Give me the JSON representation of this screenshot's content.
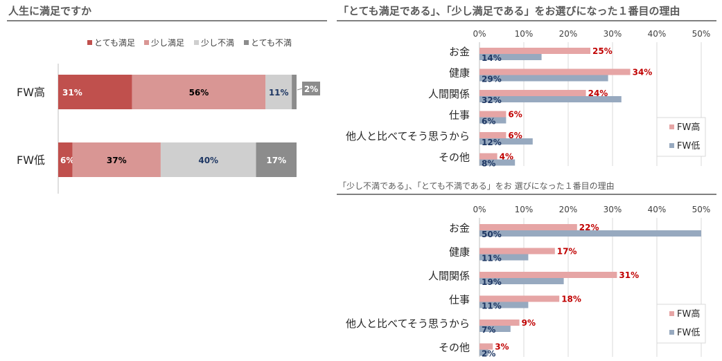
{
  "colors": {
    "very_satisfied": "#c0504d",
    "somewhat_satisfied": "#d99694",
    "somewhat_dissatisfied": "#cfcfcf",
    "very_dissatisfied": "#8c8c8c",
    "fw_high": "#e6a5a5",
    "fw_low": "#97a9bf",
    "fw_high_label": "#c00000",
    "fw_low_label": "#1f3864"
  },
  "chart_data": [
    {
      "type": "bar",
      "orientation": "horizontal-stacked-100",
      "title": "人生に満足ですか",
      "categories": [
        "FW高",
        "FW低"
      ],
      "legend_position": "top",
      "series": [
        {
          "name": "とても満足",
          "values": [
            31,
            6
          ]
        },
        {
          "name": "少し満足",
          "values": [
            56,
            37
          ]
        },
        {
          "name": "少し不満",
          "values": [
            11,
            40
          ]
        },
        {
          "name": "とても不満",
          "values": [
            2,
            17
          ]
        }
      ],
      "value_labels": [
        [
          "31%",
          "56%",
          "11%",
          "2%"
        ],
        [
          "6%",
          "37%",
          "40%",
          "17%"
        ]
      ]
    },
    {
      "type": "bar",
      "orientation": "horizontal-grouped",
      "title": "「とても満足である」、「少し満足である」をお選びになった１番目の理由",
      "categories": [
        "お金",
        "健康",
        "人間関係",
        "仕事",
        "他人と比べてそう思うから",
        "その他"
      ],
      "ticks": [
        "0%",
        "10%",
        "20%",
        "30%",
        "40%",
        "50%"
      ],
      "xlim": [
        0,
        50
      ],
      "legend_position": "right",
      "series": [
        {
          "name": "FW高",
          "values": [
            25,
            34,
            24,
            6,
            6,
            4
          ]
        },
        {
          "name": "FW低",
          "values": [
            14,
            29,
            32,
            6,
            12,
            8
          ]
        }
      ]
    },
    {
      "type": "bar",
      "orientation": "horizontal-grouped",
      "title": "「少し不満である」、「とても不満である」をお 選びになった１番目の理由",
      "categories": [
        "お金",
        "健康",
        "人間関係",
        "仕事",
        "他人と比べてそう思うから",
        "その他"
      ],
      "ticks": [
        "0%",
        "10%",
        "20%",
        "30%",
        "40%",
        "50%"
      ],
      "xlim": [
        0,
        50
      ],
      "legend_position": "right",
      "series": [
        {
          "name": "FW高",
          "values": [
            22,
            17,
            31,
            18,
            9,
            3
          ]
        },
        {
          "name": "FW低",
          "values": [
            50,
            11,
            19,
            11,
            7,
            2
          ]
        }
      ]
    }
  ]
}
